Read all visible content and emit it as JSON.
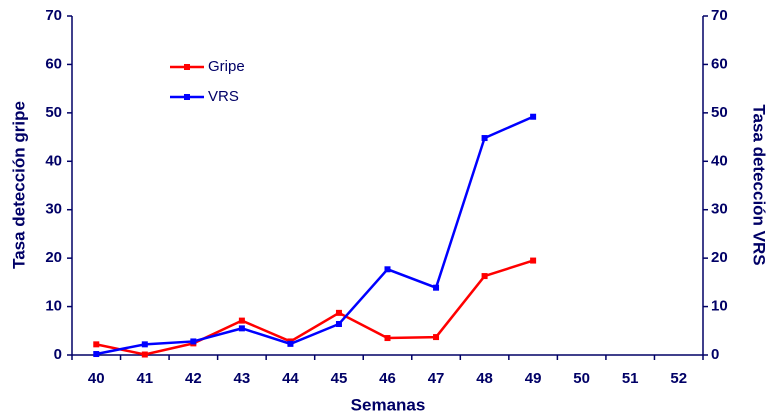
{
  "chart_data": {
    "type": "line",
    "xlabel": "Semanas",
    "ylabel": "Tasa detección gripe",
    "y2label": "Tasa detección VRS",
    "categories": [
      "40",
      "41",
      "42",
      "43",
      "44",
      "45",
      "46",
      "47",
      "48",
      "49",
      "50",
      "51",
      "52"
    ],
    "series": [
      {
        "name": "Gripe",
        "color": "#ff0000",
        "values": [
          2.2,
          0.1,
          2.4,
          7.1,
          2.8,
          8.7,
          3.5,
          3.7,
          16.3,
          19.5,
          null,
          null,
          null
        ]
      },
      {
        "name": "VRS",
        "color": "#0000ff",
        "axis": "y2",
        "values": [
          0.2,
          2.2,
          2.8,
          5.5,
          2.3,
          6.4,
          17.7,
          13.9,
          44.8,
          49.2,
          null,
          null,
          null
        ]
      }
    ],
    "ylim": [
      0,
      70
    ],
    "yticks": [
      0,
      10,
      20,
      30,
      40,
      50,
      60,
      70
    ],
    "y2lim": [
      0,
      70
    ],
    "y2ticks": [
      0,
      10,
      20,
      30,
      40,
      50,
      60,
      70
    ],
    "legend": "upper left"
  }
}
